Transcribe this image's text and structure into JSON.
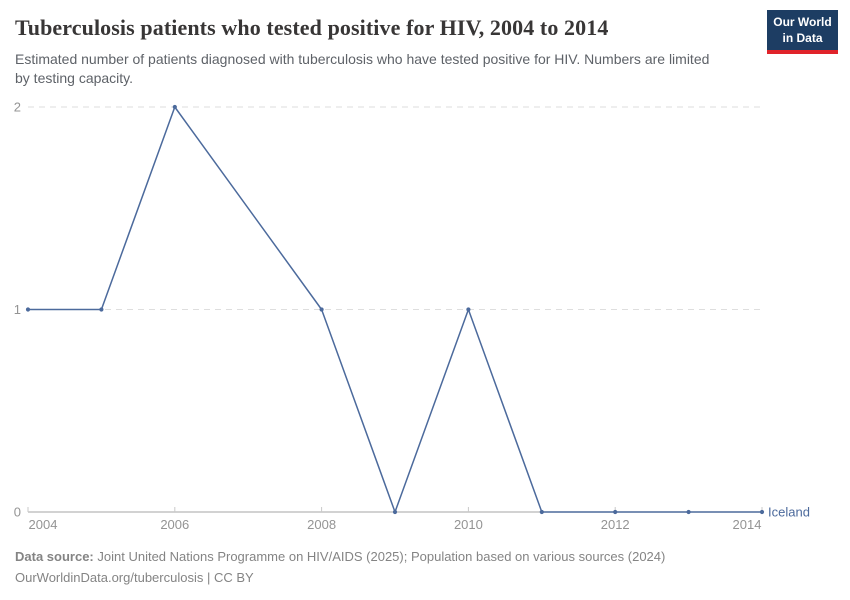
{
  "header": {
    "title": "Tuberculosis patients who tested positive for HIV, 2004 to 2014",
    "subtitle": "Estimated number of patients diagnosed with tuberculosis who have tested positive for HIV. Numbers are limited by testing capacity.",
    "logo": {
      "line1": "Our World",
      "line2": "in Data",
      "bg_color": "#1d3d63",
      "accent_color": "#e0232a"
    }
  },
  "chart_data": {
    "type": "line",
    "title": "Tuberculosis patients who tested positive for HIV, 2004 to 2014",
    "xlabel": "",
    "ylabel": "",
    "xlim": [
      2004,
      2014
    ],
    "ylim": [
      0,
      2
    ],
    "x_ticks": [
      2004,
      2006,
      2008,
      2010,
      2012,
      2014
    ],
    "y_ticks": [
      0,
      1,
      2
    ],
    "grid": "horizontal-dashed",
    "legend_position": "label-at-line-end",
    "series": [
      {
        "name": "Iceland",
        "color": "#4c6a9c",
        "x": [
          2004,
          2005,
          2006,
          2008,
          2009,
          2010,
          2011,
          2012,
          2013,
          2014
        ],
        "values": [
          1,
          1,
          2,
          1,
          0,
          1,
          0,
          0,
          0,
          0
        ]
      }
    ]
  },
  "footer": {
    "datasource_label": "Data source:",
    "datasource_text": "Joint United Nations Programme on HIV/AIDS (2025); Population based on various sources (2024)",
    "citation": "OurWorldinData.org/tuberculosis | CC BY"
  }
}
